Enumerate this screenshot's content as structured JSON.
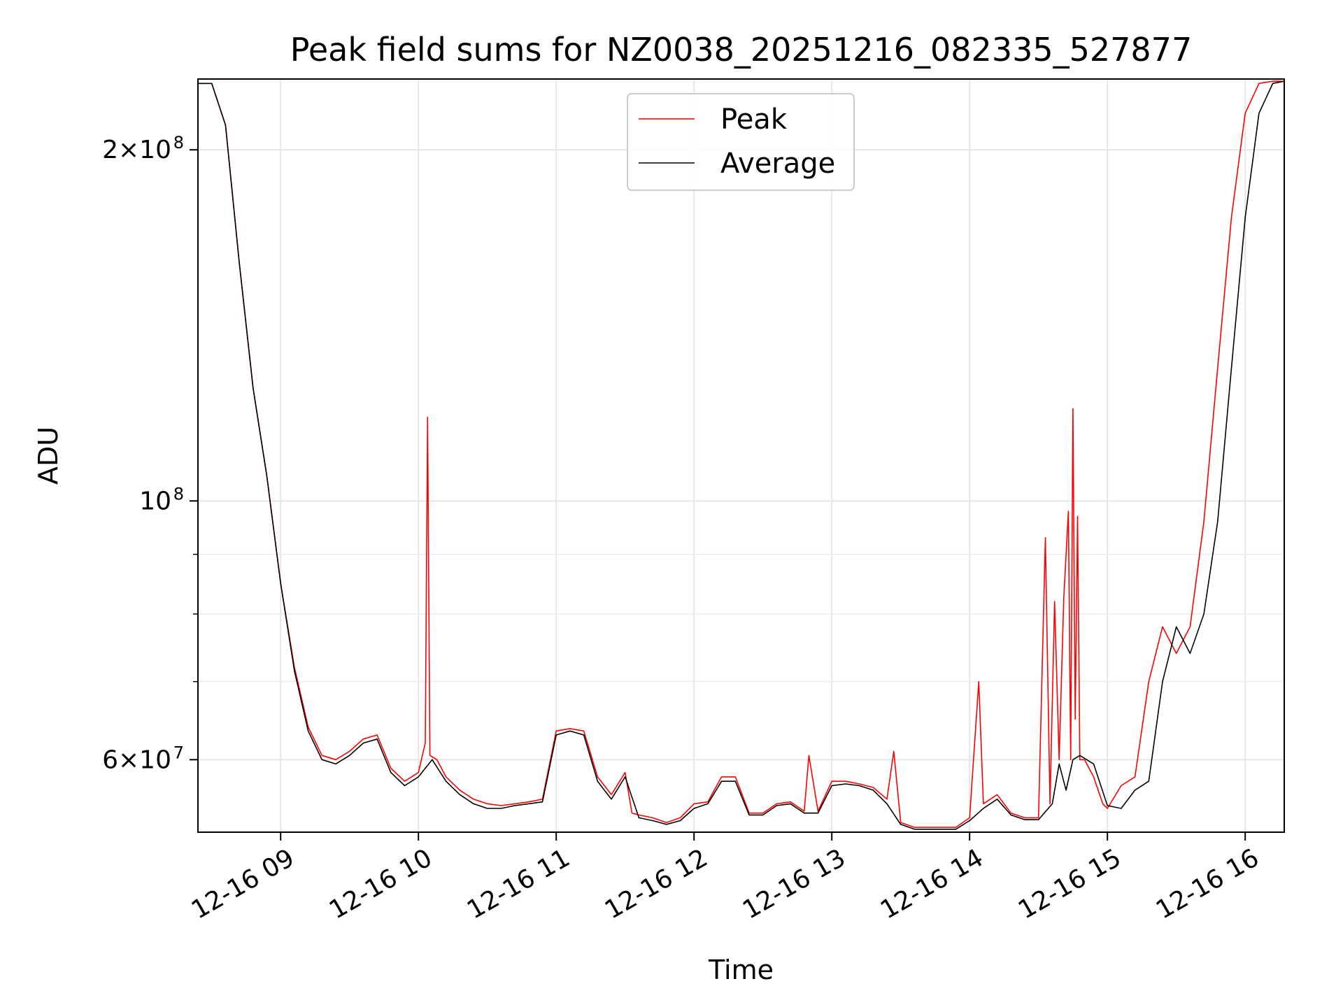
{
  "chart_data": {
    "type": "line",
    "title": "Peak field sums for NZ0038_20251216_082335_527877",
    "xlabel": "Time",
    "ylabel": "ADU",
    "y_scale": "log",
    "xlim": [
      "2025-12-16 08:24",
      "2025-12-16 16:17"
    ],
    "ylim": [
      52000000,
      230000000
    ],
    "grid": true,
    "legend_position": "top-center",
    "x_ticks": [
      {
        "value": "2025-12-16 09:00",
        "label": "12-16 09"
      },
      {
        "value": "2025-12-16 10:00",
        "label": "12-16 10"
      },
      {
        "value": "2025-12-16 11:00",
        "label": "12-16 11"
      },
      {
        "value": "2025-12-16 12:00",
        "label": "12-16 12"
      },
      {
        "value": "2025-12-16 13:00",
        "label": "12-16 13"
      },
      {
        "value": "2025-12-16 14:00",
        "label": "12-16 14"
      },
      {
        "value": "2025-12-16 15:00",
        "label": "12-16 15"
      },
      {
        "value": "2025-12-16 16:00",
        "label": "12-16 16"
      }
    ],
    "y_ticks": [
      {
        "value": 60000000,
        "label": "6×10",
        "exp": "7"
      },
      {
        "value": 100000000,
        "label": "10",
        "exp": "8"
      },
      {
        "value": 200000000,
        "label": "2×10",
        "exp": "8"
      }
    ],
    "y_minor_ticks": [
      70000000,
      80000000,
      90000000
    ],
    "series": [
      {
        "name": "Peak",
        "color": "#ff0000",
        "x": [
          "2025-12-16 08:24",
          "2025-12-16 08:30",
          "2025-12-16 08:36",
          "2025-12-16 08:42",
          "2025-12-16 08:48",
          "2025-12-16 08:54",
          "2025-12-16 09:00",
          "2025-12-16 09:06",
          "2025-12-16 09:12",
          "2025-12-16 09:18",
          "2025-12-16 09:24",
          "2025-12-16 09:30",
          "2025-12-16 09:36",
          "2025-12-16 09:42",
          "2025-12-16 09:48",
          "2025-12-16 09:54",
          "2025-12-16 10:00",
          "2025-12-16 10:03",
          "2025-12-16 10:04",
          "2025-12-16 10:05",
          "2025-12-16 10:08",
          "2025-12-16 10:12",
          "2025-12-16 10:18",
          "2025-12-16 10:24",
          "2025-12-16 10:30",
          "2025-12-16 10:36",
          "2025-12-16 10:42",
          "2025-12-16 10:48",
          "2025-12-16 10:54",
          "2025-12-16 11:00",
          "2025-12-16 11:06",
          "2025-12-16 11:12",
          "2025-12-16 11:18",
          "2025-12-16 11:24",
          "2025-12-16 11:30",
          "2025-12-16 11:33",
          "2025-12-16 11:36",
          "2025-12-16 11:42",
          "2025-12-16 11:48",
          "2025-12-16 11:54",
          "2025-12-16 12:00",
          "2025-12-16 12:06",
          "2025-12-16 12:12",
          "2025-12-16 12:18",
          "2025-12-16 12:24",
          "2025-12-16 12:30",
          "2025-12-16 12:36",
          "2025-12-16 12:42",
          "2025-12-16 12:48",
          "2025-12-16 12:50",
          "2025-12-16 12:54",
          "2025-12-16 13:00",
          "2025-12-16 13:06",
          "2025-12-16 13:12",
          "2025-12-16 13:18",
          "2025-12-16 13:24",
          "2025-12-16 13:27",
          "2025-12-16 13:30",
          "2025-12-16 13:36",
          "2025-12-16 13:42",
          "2025-12-16 13:48",
          "2025-12-16 13:54",
          "2025-12-16 14:00",
          "2025-12-16 14:04",
          "2025-12-16 14:06",
          "2025-12-16 14:12",
          "2025-12-16 14:18",
          "2025-12-16 14:24",
          "2025-12-16 14:30",
          "2025-12-16 14:33",
          "2025-12-16 14:35",
          "2025-12-16 14:37",
          "2025-12-16 14:39",
          "2025-12-16 14:41",
          "2025-12-16 14:43",
          "2025-12-16 14:44",
          "2025-12-16 14:45",
          "2025-12-16 14:46",
          "2025-12-16 14:47",
          "2025-12-16 14:48",
          "2025-12-16 14:50",
          "2025-12-16 14:54",
          "2025-12-16 14:58",
          "2025-12-16 15:00",
          "2025-12-16 15:06",
          "2025-12-16 15:12",
          "2025-12-16 15:18",
          "2025-12-16 15:24",
          "2025-12-16 15:30",
          "2025-12-16 15:36",
          "2025-12-16 15:42",
          "2025-12-16 15:48",
          "2025-12-16 15:54",
          "2025-12-16 16:00",
          "2025-12-16 16:06",
          "2025-12-16 16:12",
          "2025-12-16 16:17"
        ],
        "y": [
          228000000,
          228000000,
          210000000,
          160000000,
          125000000,
          105000000,
          85000000,
          72000000,
          64000000,
          60500000,
          60000000,
          61000000,
          62500000,
          63000000,
          59000000,
          57500000,
          58500000,
          62000000,
          118000000,
          60500000,
          60000000,
          58000000,
          56500000,
          55500000,
          55000000,
          54800000,
          55000000,
          55200000,
          55500000,
          63500000,
          63800000,
          63500000,
          58000000,
          56000000,
          58500000,
          54000000,
          53800000,
          53500000,
          53000000,
          53500000,
          55000000,
          55200000,
          58000000,
          58000000,
          54000000,
          54000000,
          55000000,
          55200000,
          54200000,
          60500000,
          54200000,
          57500000,
          57500000,
          57200000,
          56800000,
          55500000,
          61000000,
          53000000,
          52500000,
          52500000,
          52500000,
          52500000,
          53500000,
          70000000,
          55000000,
          56000000,
          54000000,
          53500000,
          53500000,
          93000000,
          55000000,
          82000000,
          60000000,
          82500000,
          98000000,
          60000000,
          120000000,
          65000000,
          97000000,
          60000000,
          60000000,
          58000000,
          55000000,
          54500000,
          57000000,
          58000000,
          70000000,
          78000000,
          74000000,
          78000000,
          96000000,
          130000000,
          175000000,
          215000000,
          228000000,
          229000000,
          229000000
        ]
      },
      {
        "name": "Average",
        "color": "#000000",
        "x": [
          "2025-12-16 08:24",
          "2025-12-16 08:30",
          "2025-12-16 08:36",
          "2025-12-16 08:42",
          "2025-12-16 08:48",
          "2025-12-16 08:54",
          "2025-12-16 09:00",
          "2025-12-16 09:06",
          "2025-12-16 09:12",
          "2025-12-16 09:18",
          "2025-12-16 09:24",
          "2025-12-16 09:30",
          "2025-12-16 09:36",
          "2025-12-16 09:42",
          "2025-12-16 09:48",
          "2025-12-16 09:54",
          "2025-12-16 10:00",
          "2025-12-16 10:06",
          "2025-12-16 10:12",
          "2025-12-16 10:18",
          "2025-12-16 10:24",
          "2025-12-16 10:30",
          "2025-12-16 10:36",
          "2025-12-16 10:42",
          "2025-12-16 10:48",
          "2025-12-16 10:54",
          "2025-12-16 11:00",
          "2025-12-16 11:06",
          "2025-12-16 11:12",
          "2025-12-16 11:18",
          "2025-12-16 11:24",
          "2025-12-16 11:30",
          "2025-12-16 11:36",
          "2025-12-16 11:42",
          "2025-12-16 11:48",
          "2025-12-16 11:54",
          "2025-12-16 12:00",
          "2025-12-16 12:06",
          "2025-12-16 12:12",
          "2025-12-16 12:18",
          "2025-12-16 12:24",
          "2025-12-16 12:30",
          "2025-12-16 12:36",
          "2025-12-16 12:42",
          "2025-12-16 12:48",
          "2025-12-16 12:54",
          "2025-12-16 13:00",
          "2025-12-16 13:06",
          "2025-12-16 13:12",
          "2025-12-16 13:18",
          "2025-12-16 13:24",
          "2025-12-16 13:30",
          "2025-12-16 13:36",
          "2025-12-16 13:42",
          "2025-12-16 13:48",
          "2025-12-16 13:54",
          "2025-12-16 14:00",
          "2025-12-16 14:06",
          "2025-12-16 14:12",
          "2025-12-16 14:18",
          "2025-12-16 14:24",
          "2025-12-16 14:30",
          "2025-12-16 14:36",
          "2025-12-16 14:39",
          "2025-12-16 14:42",
          "2025-12-16 14:45",
          "2025-12-16 14:48",
          "2025-12-16 14:54",
          "2025-12-16 15:00",
          "2025-12-16 15:06",
          "2025-12-16 15:12",
          "2025-12-16 15:18",
          "2025-12-16 15:24",
          "2025-12-16 15:30",
          "2025-12-16 15:36",
          "2025-12-16 15:42",
          "2025-12-16 15:48",
          "2025-12-16 15:54",
          "2025-12-16 16:00",
          "2025-12-16 16:06",
          "2025-12-16 16:12",
          "2025-12-16 16:17"
        ],
        "y": [
          228000000,
          228000000,
          210000000,
          160000000,
          125000000,
          105000000,
          85000000,
          71500000,
          63500000,
          60000000,
          59500000,
          60500000,
          62000000,
          62500000,
          58500000,
          57000000,
          58000000,
          60000000,
          57500000,
          56000000,
          55000000,
          54500000,
          54500000,
          54800000,
          55000000,
          55200000,
          63000000,
          63500000,
          63000000,
          57500000,
          55500000,
          58000000,
          53500000,
          53200000,
          52800000,
          53200000,
          54500000,
          55000000,
          57500000,
          57500000,
          53800000,
          53800000,
          54800000,
          55000000,
          54000000,
          54000000,
          57000000,
          57200000,
          57000000,
          56500000,
          55000000,
          52800000,
          52300000,
          52300000,
          52300000,
          52300000,
          53200000,
          54500000,
          55500000,
          53800000,
          53300000,
          53300000,
          55000000,
          59500000,
          56500000,
          60000000,
          60500000,
          59500000,
          54800000,
          54500000,
          56500000,
          57500000,
          70000000,
          78000000,
          74000000,
          80000000,
          96000000,
          130000000,
          175000000,
          215000000,
          228000000,
          229000000
        ]
      }
    ]
  }
}
